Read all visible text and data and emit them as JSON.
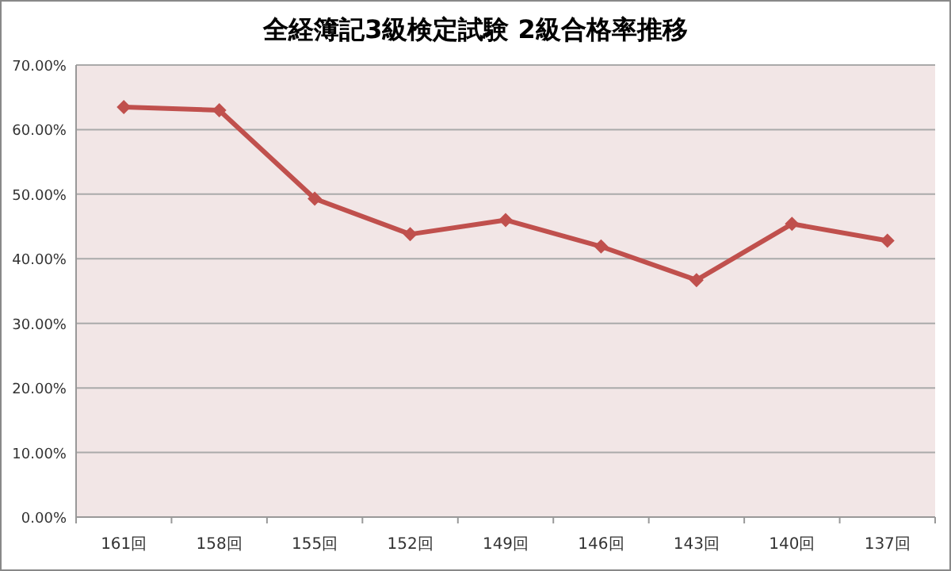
{
  "chart_data": {
    "type": "line",
    "title": "全経簿記3級検定試験  2級合格率推移",
    "categories": [
      "161回",
      "158回",
      "155回",
      "152回",
      "149回",
      "146回",
      "143回",
      "140回",
      "137回"
    ],
    "series": [
      {
        "color": "#c0504d",
        "values": [
          63.5,
          63.0,
          49.3,
          43.8,
          46.0,
          41.9,
          36.7,
          45.4,
          42.8
        ]
      }
    ],
    "ylim": [
      0,
      70
    ],
    "yticks": [
      {
        "value": 0,
        "label": "0.00%"
      },
      {
        "value": 10,
        "label": "10.00%"
      },
      {
        "value": 20,
        "label": "20.00%"
      },
      {
        "value": 30,
        "label": "30.00%"
      },
      {
        "value": 40,
        "label": "40.00%"
      },
      {
        "value": 50,
        "label": "50.00%"
      },
      {
        "value": 60,
        "label": "60.00%"
      },
      {
        "value": 70,
        "label": "70.00%"
      }
    ],
    "grid": "y",
    "marker": "diamond",
    "line_style": "solid"
  }
}
